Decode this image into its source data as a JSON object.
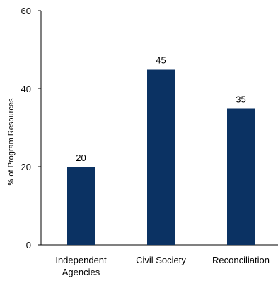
{
  "chart_data": {
    "type": "bar",
    "categories": [
      [
        "Independent",
        "Agencies"
      ],
      [
        "Civil Society"
      ],
      [
        "Reconciliation"
      ]
    ],
    "values": [
      20,
      45,
      35
    ],
    "data_labels": [
      "20",
      "45",
      "35"
    ],
    "title": "",
    "xlabel": "",
    "ylabel": "% of Program Resources",
    "ylim": [
      0,
      60
    ],
    "yticks": [
      0,
      20,
      40,
      60
    ],
    "grid": false,
    "bar_color": "#0b3263"
  }
}
